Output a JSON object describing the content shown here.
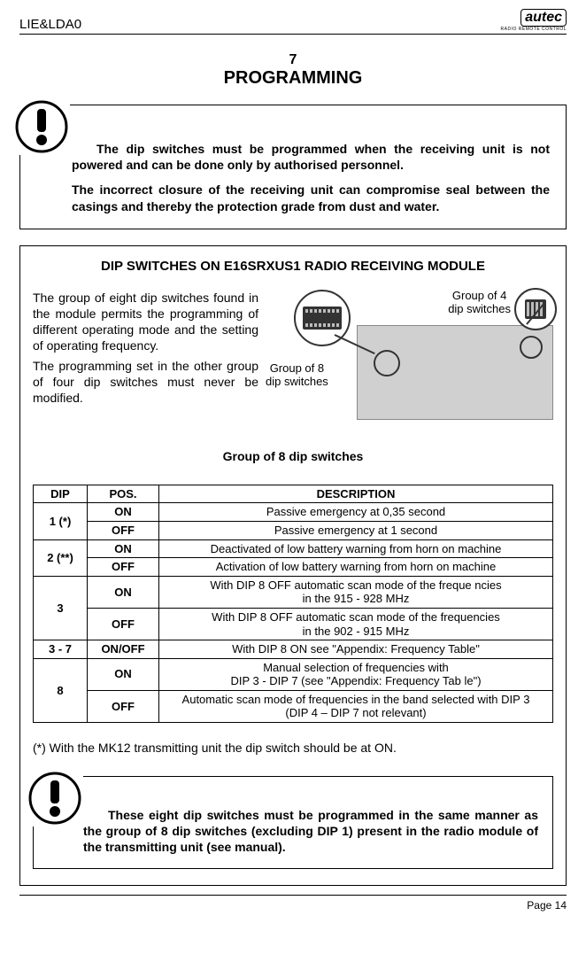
{
  "header": {
    "doc_id": "LIE&LDA0",
    "brand": "autec",
    "brand_sub": "RADIO REMOTE CONTROL"
  },
  "chapter": {
    "number": "7",
    "title": "PROGRAMMING"
  },
  "warning1": {
    "p1_bold": "The dip switches must be programmed when the receiving unit is not powered and can be done only by authorised personnel.",
    "p2_bold": "The incorrect closure of the receiving unit can compromise seal between the casings and thereby the protection grade from dust and water."
  },
  "section": {
    "title": "DIP SWITCHES ON E16SRXUS1 RADIO RECEIVING MODULE",
    "intro": {
      "p1": "The group of eight dip switches found in the module permits the programming of different operating mode and  the setting of operating frequency.",
      "p2": "The programming set in the other group of four dip switches  must never be modified."
    },
    "callouts": {
      "group4": "Group of 4\ndip switches",
      "group8": "Group of 8\ndip switches"
    },
    "sub_title": "Group of 8 dip switches",
    "table": {
      "headers": {
        "dip": "DIP",
        "pos": "POS.",
        "desc": "DESCRIPTION"
      },
      "rows": [
        {
          "dip": "1 (*)",
          "entries": [
            {
              "pos": "ON",
              "desc": "Passive emergency at 0,35 second"
            },
            {
              "pos": "OFF",
              "desc": "Passive emergency at 1 second"
            }
          ]
        },
        {
          "dip": "2 (**)",
          "entries": [
            {
              "pos": "ON",
              "desc": "Deactivated of low battery warning from horn on machine"
            },
            {
              "pos": "OFF",
              "desc": "Activation of low battery warning from horn on machine"
            }
          ]
        },
        {
          "dip": "3",
          "entries": [
            {
              "pos": "ON",
              "desc": "With DIP 8 OFF automatic scan mode of the freque ncies\nin the 915 - 928 MHz"
            },
            {
              "pos": "OFF",
              "desc": "With DIP 8 OFF automatic scan mode of the frequencies\nin the 902 - 915 MHz"
            }
          ]
        },
        {
          "dip": "3 - 7",
          "entries": [
            {
              "pos": "ON/OFF",
              "desc": "With DIP 8 ON see \"Appendix: Frequency Table\""
            }
          ]
        },
        {
          "dip": "8",
          "entries": [
            {
              "pos": "ON",
              "desc": "Manual selection of frequencies with\nDIP 3 - DIP 7 (see \"Appendix: Frequency Tab le\")"
            },
            {
              "pos": "OFF",
              "desc": "Automatic scan mode of frequencies in the band selected with DIP 3\n(DIP 4 – DIP 7 not relevant)"
            }
          ]
        }
      ]
    },
    "note": "(*) With the MK12 transmitting unit the dip switch should be at ON.",
    "warning2": "These eight dip switches must be programmed in the same manner as the group of 8 dip switches (excluding DIP 1) present in the radio module of the transmitting unit (see manual)."
  },
  "footer": {
    "page": "Page 14"
  },
  "style": {
    "text_color": "#000000",
    "bg_color": "#ffffff",
    "border_color": "#000000"
  }
}
